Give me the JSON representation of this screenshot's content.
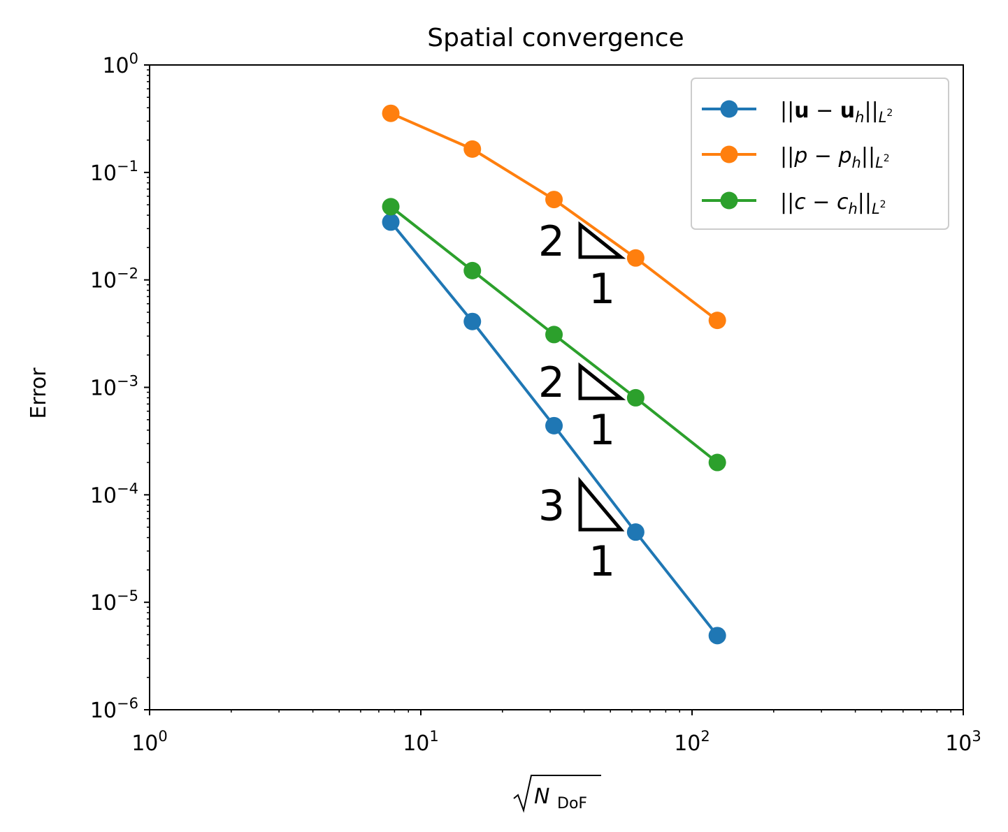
{
  "chart_data": {
    "type": "line",
    "title": "Spatial convergence",
    "xlabel": {
      "main": "N",
      "sub": "DoF"
    },
    "ylabel": "Error",
    "xscale": "log",
    "yscale": "log",
    "xlim": [
      1,
      1000
    ],
    "ylim": [
      1e-06,
      1
    ],
    "x_ticks": [
      {
        "value": 1,
        "base": "10",
        "exp": "0"
      },
      {
        "value": 10,
        "base": "10",
        "exp": "1"
      },
      {
        "value": 100,
        "base": "10",
        "exp": "2"
      },
      {
        "value": 1000,
        "base": "10",
        "exp": "3"
      }
    ],
    "y_ticks": [
      {
        "value": 1,
        "base": "10",
        "exp": "0"
      },
      {
        "value": 0.1,
        "base": "10",
        "exp": "−1"
      },
      {
        "value": 0.01,
        "base": "10",
        "exp": "−2"
      },
      {
        "value": 0.001,
        "base": "10",
        "exp": "−3"
      },
      {
        "value": 0.0001,
        "base": "10",
        "exp": "−4"
      },
      {
        "value": 1e-05,
        "base": "10",
        "exp": "−5"
      },
      {
        "value": 1e-06,
        "base": "10",
        "exp": "−6"
      }
    ],
    "legend_position": "top-right",
    "grid": false,
    "series": [
      {
        "legend": {
          "v": "u",
          "sub": "h",
          "norm": "L",
          "norm_exp": "2"
        },
        "color": "#1f77b4",
        "x": [
          7.75,
          15.49,
          30.98,
          61.97,
          123.94
        ],
        "y": [
          0.0345,
          0.0041,
          0.00044,
          4.5e-05,
          4.9e-06
        ]
      },
      {
        "legend": {
          "v": "p",
          "sub": "h",
          "norm": "L",
          "norm_exp": "2"
        },
        "color": "#ff7f0e",
        "x": [
          7.75,
          15.49,
          30.98,
          61.97,
          123.94
        ],
        "y": [
          0.355,
          0.165,
          0.056,
          0.016,
          0.0042
        ]
      },
      {
        "legend": {
          "v": "c",
          "sub": "h",
          "norm": "L",
          "norm_exp": "2"
        },
        "color": "#2ca02c",
        "x": [
          7.75,
          15.49,
          30.98,
          61.97,
          123.94
        ],
        "y": [
          0.048,
          0.0122,
          0.0031,
          0.0008,
          0.0002
        ]
      }
    ],
    "slope_triangles": [
      {
        "rise": "2",
        "run": "1",
        "x0": 38.7,
        "x1": 54.6,
        "y_top": 0.0325,
        "y_bottom": 0.0163
      },
      {
        "rise": "2",
        "run": "1",
        "x0": 38.7,
        "x1": 54.6,
        "y_top": 0.00158,
        "y_bottom": 0.00079
      },
      {
        "rise": "3",
        "run": "1",
        "x0": 38.7,
        "x1": 54.6,
        "y_top": 0.000133,
        "y_bottom": 4.75e-05
      }
    ]
  }
}
